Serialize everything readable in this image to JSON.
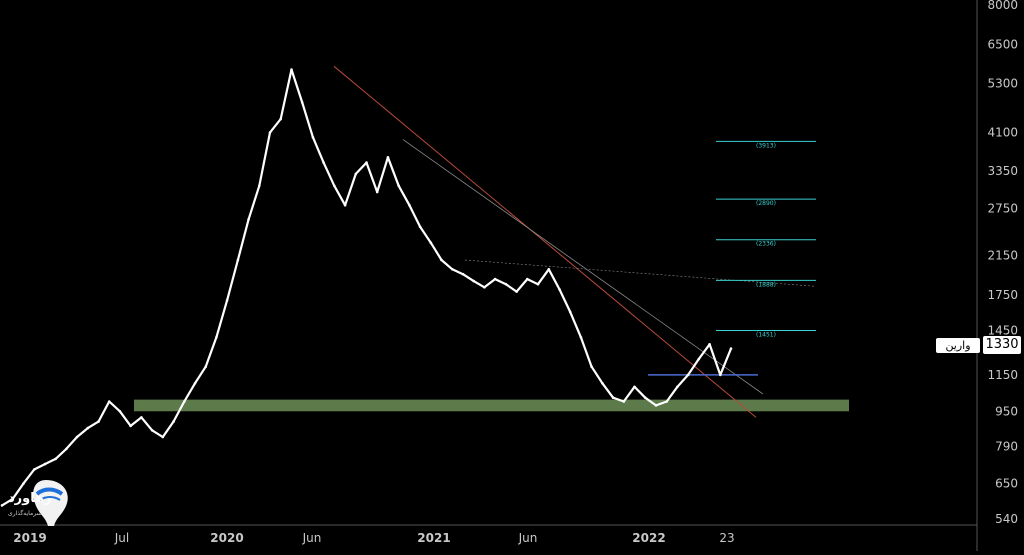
{
  "chart_data": {
    "type": "line",
    "title": "",
    "xlabel": "",
    "ylabel": "",
    "y_scale": "log",
    "ylim": [
      520,
      8000
    ],
    "y_ticks": [
      540,
      650,
      790,
      950,
      1150,
      1450,
      1750,
      2150,
      2750,
      3350,
      4100,
      5300,
      6500,
      8000
    ],
    "x_ticks": [
      {
        "label": "2019",
        "major": true
      },
      {
        "label": "Jul",
        "major": false
      },
      {
        "label": "2020",
        "major": true
      },
      {
        "label": "Jun",
        "major": false
      },
      {
        "label": "2021",
        "major": true
      },
      {
        "label": "Jun",
        "major": false
      },
      {
        "label": "2022",
        "major": true
      },
      {
        "label": "23",
        "major": false
      }
    ],
    "series": [
      {
        "values": [
          580,
          600,
          650,
          700,
          720,
          740,
          780,
          830,
          870,
          900,
          1000,
          950,
          880,
          920,
          860,
          830,
          900,
          1000,
          1100,
          1200,
          1400,
          1700,
          2100,
          2600,
          3100,
          4100,
          4400,
          5700,
          4800,
          4000,
          3500,
          3100,
          2800,
          3300,
          3500,
          3000,
          3600,
          3100,
          2800,
          2500,
          2300,
          2100,
          2000,
          1950,
          1880,
          1820,
          1900,
          1850,
          1780,
          1900,
          1850,
          2000,
          1800,
          1600,
          1400,
          1200,
          1100,
          1020,
          1000,
          1080,
          1020,
          980,
          1000,
          1080,
          1150,
          1250,
          1350,
          1150,
          1320
        ]
      }
    ],
    "support_zone": [
      950,
      1010
    ],
    "horizontal_line": 1150,
    "fib_levels": [
      {
        "label": "(3913)",
        "value": 3913
      },
      {
        "label": "(2890)",
        "value": 2890
      },
      {
        "label": "(2336)",
        "value": 2336
      },
      {
        "label": "(1888)",
        "value": 1888
      },
      {
        "label": "(1451)",
        "value": 1451
      }
    ],
    "last_price": "1330",
    "instrument_name": "وارين"
  },
  "logo": {
    "text": "رهاورد",
    "subtext": "سرمایه‌گذاری"
  },
  "colors": {
    "background": "#000000",
    "price": "#ffffff",
    "zone": "#5c7a4a",
    "fib": "#3ad1d1",
    "hline": "#4a6cd4",
    "trend_red": "#b84a3a",
    "trend_gray": "#8a8a8a"
  }
}
